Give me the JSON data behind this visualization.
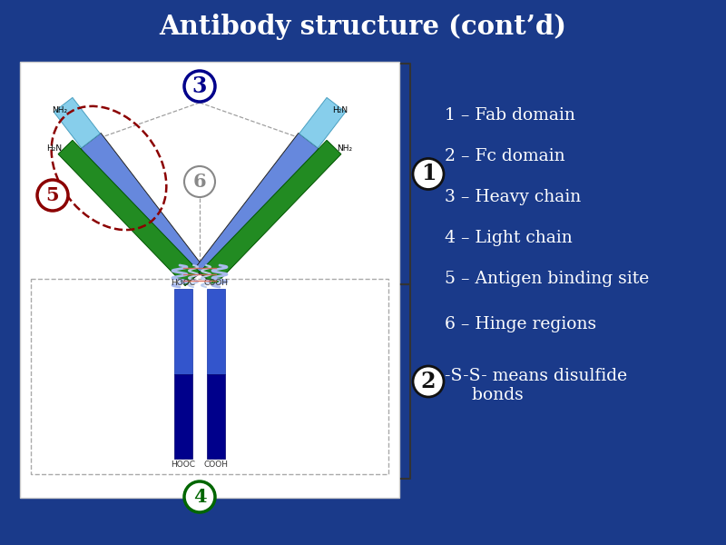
{
  "title": "Antibody structure (cont’d)",
  "title_color": "#FFFFFF",
  "bg_color": "#1a3a8a",
  "panel_bg": "#FFFFFF",
  "legend_items": [
    "1 – Fab domain",
    "2 – Fc domain",
    "3 – Heavy chain",
    "4 – Light chain",
    "5 – Antigen binding site",
    "6 – Hinge regions",
    "-S-S- means disulfide\n     bonds"
  ],
  "heavy_color_top": "#6688dd",
  "heavy_color_bot": "#2244bb",
  "light_color": "#228B22",
  "light_color_dark": "#005500",
  "fab_color": "#87CEEB",
  "fab_color_dark": "#4a9fc0",
  "fc_bar_top": "#3355cc",
  "fc_bar_bot": "#00008b",
  "hinge_coil_color": "#aabbee",
  "ss_bond_color": "#dd6655",
  "circle1_edge": "#111111",
  "circle2_edge": "#111111",
  "circle3_edge": "#00008b",
  "circle4_edge": "#006600",
  "circle5_edge": "#8b0000",
  "circle6_edge": "#888888",
  "bracket_color": "#333333",
  "dashed_color": "#888888",
  "panel_edge": "#cccccc"
}
